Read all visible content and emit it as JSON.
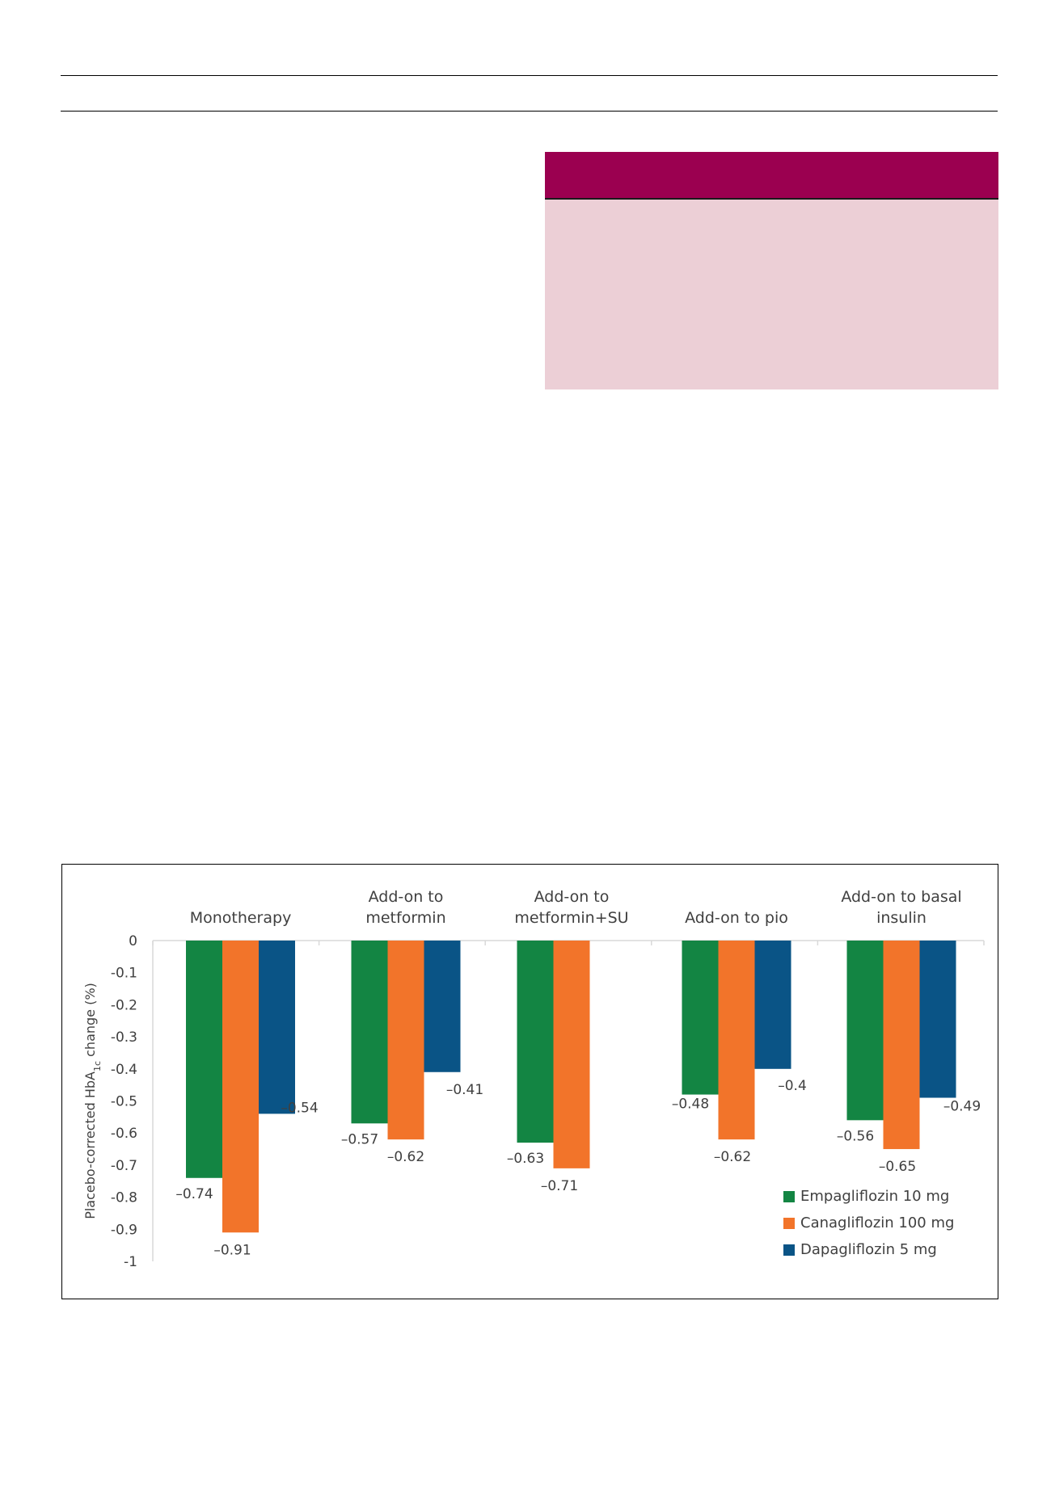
{
  "colors": {
    "empagliflozin": "#138543",
    "canagliflozin": "#f2742a",
    "dapagliflozin": "#0a5486",
    "box_header": "#9b0050",
    "box_body": "#eccfd6",
    "axis": "#d9d9d9"
  },
  "chart_data": {
    "type": "bar",
    "title": "",
    "xlabel": "",
    "ylabel": "Placebo-corrected HbA1c change (%)",
    "ylim": [
      -1,
      0
    ],
    "yticks": [
      0,
      -0.1,
      -0.2,
      -0.3,
      -0.4,
      -0.5,
      -0.6,
      -0.7,
      -0.8,
      -0.9,
      -1
    ],
    "ytick_labels": [
      "0",
      "-0.1",
      "-0.2",
      "-0.3",
      "-0.4",
      "-0.5",
      "-0.6",
      "-0.7",
      "-0.8",
      "-0.9",
      "-1"
    ],
    "grid": false,
    "legend_position": "bottom-right",
    "categories": [
      [
        "Monotherapy"
      ],
      [
        "Add-on to",
        "metformin"
      ],
      [
        "Add-on to",
        "metformin+SU"
      ],
      [
        "Add-on to pio"
      ],
      [
        "Add-on to basal",
        "insulin"
      ]
    ],
    "series": [
      {
        "name": "Empagliflozin 10 mg",
        "values": [
          -0.74,
          -0.57,
          -0.63,
          -0.48,
          -0.56
        ],
        "labels": [
          "–0.74",
          "–0.57",
          "–0.63",
          "–0.48",
          "–0.56"
        ]
      },
      {
        "name": "Canagliflozin 100 mg",
        "values": [
          -0.91,
          -0.62,
          -0.71,
          -0.62,
          -0.65
        ],
        "labels": [
          "–0.91",
          "–0.62",
          "–0.71",
          "–0.62",
          "–0.65"
        ]
      },
      {
        "name": "Dapagliflozin 5 mg",
        "values": [
          -0.54,
          -0.41,
          null,
          -0.4,
          -0.49
        ],
        "labels": [
          "–0.54",
          "–0.41",
          "",
          "–0.4",
          "–0.49"
        ]
      }
    ]
  }
}
